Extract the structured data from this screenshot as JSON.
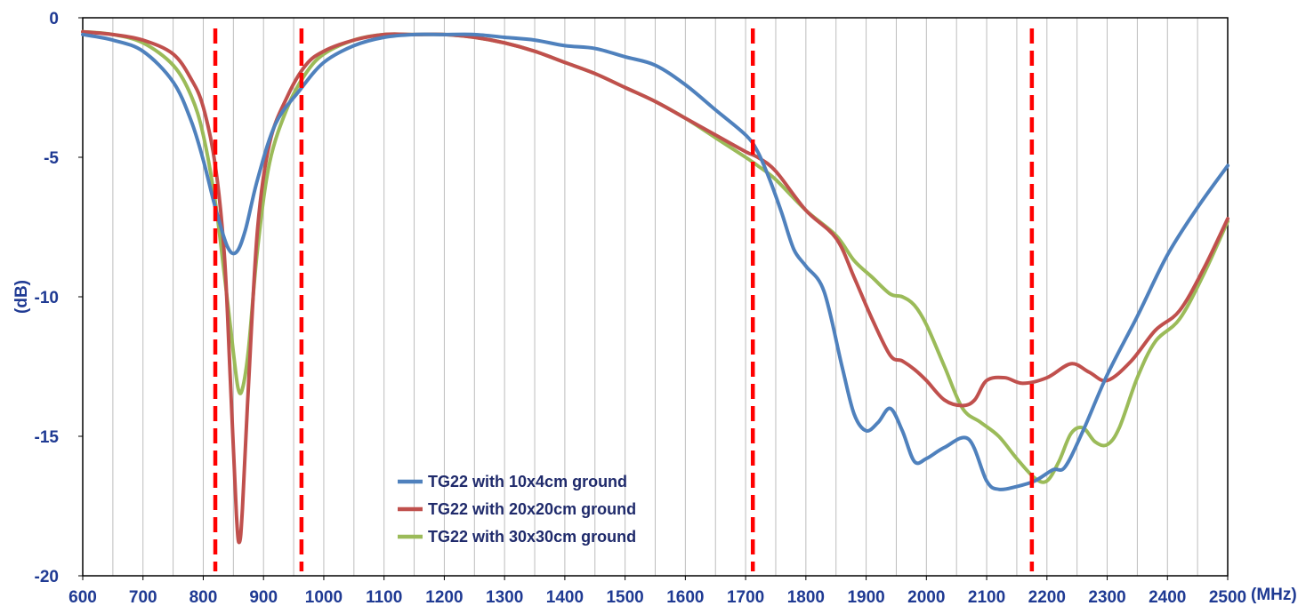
{
  "chart_data": {
    "type": "line",
    "title": "",
    "xlabel": "",
    "x_unit_label": "(MHz)",
    "ylabel": "(dB)",
    "xlim": [
      600,
      2500
    ],
    "ylim": [
      -20,
      0
    ],
    "x_minor_step": 50,
    "x_ticks": [
      600,
      700,
      800,
      900,
      1000,
      1100,
      1200,
      1300,
      1400,
      1500,
      1600,
      1700,
      1800,
      1900,
      2000,
      2100,
      2200,
      2300,
      2400,
      2500
    ],
    "y_ticks": [
      0,
      -5,
      -10,
      -15,
      -20
    ],
    "grid": "vertical",
    "legend_position": "bottom-center",
    "markers": {
      "color": "#FF0000",
      "x": [
        820,
        963,
        1712,
        2175
      ]
    },
    "series": [
      {
        "name": "TG22 with 10x4cm ground",
        "color": "#4F81BD",
        "x": [
          600,
          650,
          700,
          750,
          780,
          800,
          820,
          840,
          855,
          870,
          890,
          920,
          960,
          1000,
          1050,
          1100,
          1150,
          1200,
          1250,
          1300,
          1350,
          1400,
          1450,
          1500,
          1550,
          1600,
          1650,
          1700,
          1720,
          1740,
          1760,
          1780,
          1800,
          1830,
          1860,
          1880,
          1900,
          1920,
          1940,
          1960,
          1980,
          2000,
          2030,
          2070,
          2100,
          2120,
          2150,
          2180,
          2210,
          2230,
          2260,
          2300,
          2350,
          2400,
          2450,
          2500
        ],
        "y": [
          -0.6,
          -0.8,
          -1.2,
          -2.3,
          -3.7,
          -5.1,
          -6.8,
          -8.2,
          -8.4,
          -7.6,
          -5.8,
          -3.8,
          -2.6,
          -1.6,
          -1.0,
          -0.7,
          -0.6,
          -0.6,
          -0.6,
          -0.7,
          -0.8,
          -1.0,
          -1.1,
          -1.4,
          -1.7,
          -2.4,
          -3.3,
          -4.2,
          -4.8,
          -5.8,
          -7.0,
          -8.3,
          -8.9,
          -9.8,
          -12.5,
          -14.2,
          -14.8,
          -14.5,
          -14.0,
          -14.8,
          -15.9,
          -15.8,
          -15.4,
          -15.1,
          -16.6,
          -16.9,
          -16.8,
          -16.6,
          -16.2,
          -16.1,
          -14.8,
          -12.8,
          -10.7,
          -8.5,
          -6.8,
          -5.3
        ]
      },
      {
        "name": "TG22 with 20x20cm ground",
        "color": "#C0504D",
        "x": [
          600,
          650,
          700,
          750,
          780,
          800,
          820,
          835,
          845,
          855,
          860,
          865,
          875,
          890,
          910,
          940,
          970,
          1000,
          1050,
          1100,
          1150,
          1200,
          1250,
          1300,
          1350,
          1400,
          1450,
          1500,
          1550,
          1600,
          1650,
          1700,
          1720,
          1750,
          1800,
          1850,
          1880,
          1910,
          1940,
          1960,
          1980,
          2000,
          2030,
          2060,
          2080,
          2100,
          2130,
          2160,
          2200,
          2240,
          2270,
          2300,
          2340,
          2380,
          2420,
          2460,
          2500
        ],
        "y": [
          -0.5,
          -0.6,
          -0.8,
          -1.3,
          -2.2,
          -3.2,
          -5.3,
          -8.5,
          -13.0,
          -17.8,
          -18.8,
          -17.6,
          -13.2,
          -7.6,
          -4.5,
          -2.8,
          -1.7,
          -1.2,
          -0.8,
          -0.6,
          -0.6,
          -0.6,
          -0.7,
          -0.9,
          -1.2,
          -1.6,
          -2.0,
          -2.5,
          -3.0,
          -3.6,
          -4.2,
          -4.8,
          -5.0,
          -5.5,
          -6.9,
          -7.9,
          -9.3,
          -10.8,
          -12.1,
          -12.3,
          -12.6,
          -13.0,
          -13.7,
          -13.9,
          -13.7,
          -13.0,
          -12.9,
          -13.1,
          -12.9,
          -12.4,
          -12.7,
          -13.0,
          -12.3,
          -11.2,
          -10.5,
          -9.0,
          -7.2
        ]
      },
      {
        "name": "TG22 with 30x30cm ground",
        "color": "#9BBB59",
        "x": [
          600,
          650,
          700,
          750,
          780,
          800,
          820,
          835,
          850,
          858,
          865,
          875,
          890,
          910,
          940,
          970,
          1000,
          1050,
          1100,
          1150,
          1200,
          1250,
          1300,
          1350,
          1400,
          1450,
          1500,
          1550,
          1600,
          1650,
          1700,
          1720,
          1750,
          1800,
          1850,
          1880,
          1910,
          1940,
          1960,
          1980,
          2000,
          2030,
          2060,
          2090,
          2120,
          2150,
          2180,
          2200,
          2220,
          2240,
          2260,
          2280,
          2300,
          2320,
          2350,
          2380,
          2420,
          2460,
          2500
        ],
        "y": [
          -0.5,
          -0.6,
          -0.9,
          -1.7,
          -2.8,
          -4.2,
          -6.6,
          -9.2,
          -12.0,
          -13.3,
          -13.3,
          -11.9,
          -8.3,
          -5.2,
          -3.2,
          -2.0,
          -1.3,
          -0.8,
          -0.6,
          -0.6,
          -0.6,
          -0.7,
          -0.9,
          -1.2,
          -1.6,
          -2.0,
          -2.5,
          -3.0,
          -3.6,
          -4.3,
          -5.0,
          -5.3,
          -5.8,
          -6.9,
          -7.8,
          -8.7,
          -9.3,
          -9.9,
          -10.0,
          -10.3,
          -11.0,
          -12.5,
          -14.0,
          -14.5,
          -15.0,
          -15.8,
          -16.5,
          -16.6,
          -15.9,
          -14.9,
          -14.7,
          -15.2,
          -15.3,
          -14.7,
          -12.9,
          -11.6,
          -10.8,
          -9.2,
          -7.3
        ]
      }
    ]
  }
}
